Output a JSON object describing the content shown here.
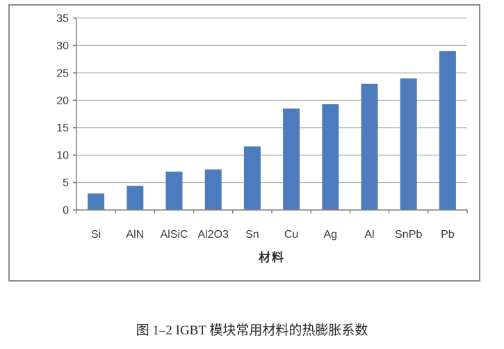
{
  "figure": {
    "caption": "图 1–2 IGBT 模块常用材料的热膨胀系数",
    "border_color": "#8d8d8d",
    "background": "#ffffff"
  },
  "chart_data": {
    "type": "bar",
    "title": "",
    "xlabel": "材料",
    "ylabel": "",
    "categories": [
      "Si",
      "AlN",
      "AlSiC",
      "Al2O3",
      "Sn",
      "Cu",
      "Ag",
      "Al",
      "SnPb",
      "Pb"
    ],
    "values": [
      3.0,
      4.4,
      7.0,
      7.4,
      11.6,
      18.5,
      19.3,
      23.0,
      24.0,
      29.0
    ],
    "ylim": [
      0,
      35
    ],
    "ytick_step": 5,
    "ytick_labels": [
      "0",
      "5",
      "10",
      "15",
      "20",
      "25",
      "30",
      "35"
    ],
    "grid": true,
    "legend": "none",
    "bar_color": "#4d7cbe",
    "gridline_color": "#ababab",
    "axis_color": "#7f7f7f",
    "tick_label_color": "#3a3a3a"
  }
}
